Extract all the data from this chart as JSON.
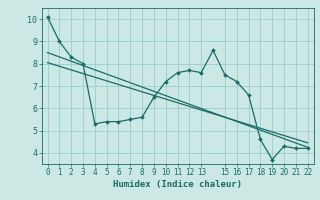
{
  "title": "",
  "xlabel": "Humidex (Indice chaleur)",
  "bg_color": "#cce8e4",
  "line_color": "#1a6b6b",
  "grid_color": "#99cccc",
  "xlim": [
    -0.5,
    22.5
  ],
  "ylim": [
    3.5,
    10.5
  ],
  "xticks": [
    0,
    1,
    2,
    3,
    4,
    5,
    6,
    7,
    8,
    9,
    10,
    11,
    12,
    13,
    15,
    16,
    17,
    18,
    19,
    20,
    21,
    22
  ],
  "yticks": [
    4,
    5,
    6,
    7,
    8,
    9,
    10
  ],
  "data_x": [
    0,
    1,
    2,
    3,
    4,
    5,
    6,
    7,
    8,
    9,
    10,
    11,
    12,
    13,
    14,
    15,
    16,
    17,
    18,
    19,
    20,
    21,
    22
  ],
  "data_y": [
    10.1,
    9.0,
    8.3,
    8.0,
    5.3,
    5.4,
    5.4,
    5.5,
    5.6,
    6.5,
    7.2,
    7.6,
    7.7,
    7.6,
    8.6,
    7.5,
    7.2,
    6.6,
    4.6,
    3.7,
    4.3,
    4.2,
    4.2
  ],
  "trend1_x": [
    0,
    22
  ],
  "trend1_y": [
    8.5,
    4.25
  ],
  "trend2_x": [
    0,
    22
  ],
  "trend2_y": [
    8.05,
    4.45
  ]
}
